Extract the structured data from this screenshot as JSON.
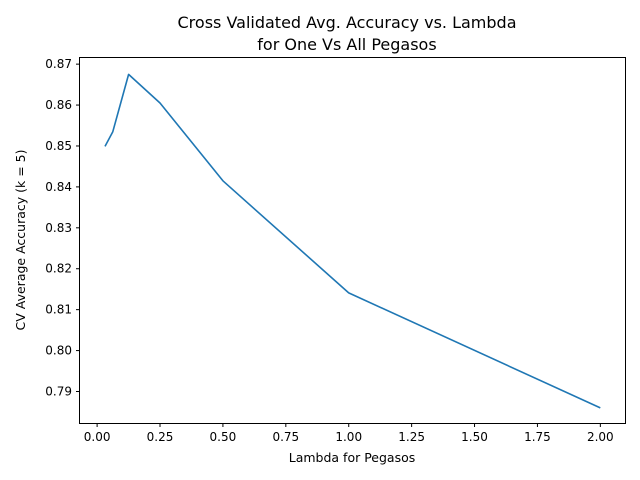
{
  "chart_data": {
    "type": "line",
    "title": "Cross Validated Avg. Accuracy vs. Lambda",
    "subtitle": "for One Vs All Pegasos",
    "xlabel": "Lambda for Pegasos",
    "ylabel": "CV Average Accuracy (k = 5)",
    "xlim": [
      -0.068,
      2.098
    ],
    "ylim": [
      0.7823,
      0.8715
    ],
    "xticks": [
      0.0,
      0.25,
      0.5,
      0.75,
      1.0,
      1.25,
      1.5,
      1.75,
      2.0
    ],
    "xtick_labels": [
      "0.00",
      "0.25",
      "0.50",
      "0.75",
      "1.00",
      "1.25",
      "1.50",
      "1.75",
      "2.00"
    ],
    "yticks": [
      0.79,
      0.8,
      0.81,
      0.82,
      0.83,
      0.84,
      0.85,
      0.86,
      0.87
    ],
    "ytick_labels": [
      "0.79",
      "0.80",
      "0.81",
      "0.82",
      "0.83",
      "0.84",
      "0.85",
      "0.86",
      "0.87"
    ],
    "grid": false,
    "series": [
      {
        "color": "#1f77b4",
        "x": [
          0.03125,
          0.0625,
          0.125,
          0.25,
          0.5,
          1.0,
          2.0
        ],
        "y": [
          0.8499,
          0.8535,
          0.8675,
          0.8605,
          0.8415,
          0.8141,
          0.786
        ]
      }
    ]
  }
}
